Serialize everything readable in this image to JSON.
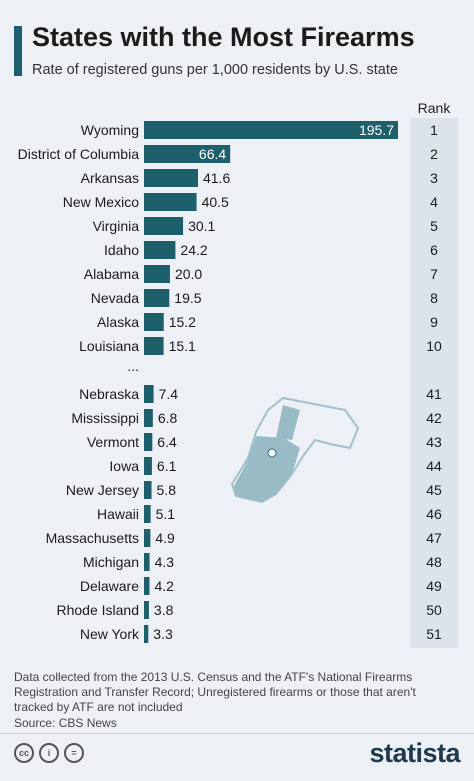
{
  "title": "States with the Most Firearms",
  "subtitle": "Rate of registered guns per 1,000 residents by U.S. state",
  "rank_header": "Rank",
  "ellipsis": "...",
  "footnote": "Data collected from the 2013 U.S. Census and the ATF's National Firearms Registration and Transfer Record; Unregistered firearms or those that aren't tracked by ATF are not included",
  "source": "Source: CBS News",
  "brand": "statista",
  "license_icons": [
    "creative-commons-icon",
    "attribution-icon",
    "no-derivatives-icon"
  ],
  "colors": {
    "bar": "#1d5f6a",
    "accent": "#1d5f6a",
    "background": "#edf0f4",
    "rank_column": "#dde3ea",
    "illustration": "#8fb6c0"
  },
  "chart_data": {
    "type": "bar",
    "orientation": "horizontal",
    "title": "States with the Most Firearms",
    "subtitle": "Rate of registered guns per 1,000 residents by U.S. state",
    "categories": [
      "Wyoming",
      "District of Columbia",
      "Arkansas",
      "New Mexico",
      "Virginia",
      "Idaho",
      "Alabama",
      "Nevada",
      "Alaska",
      "Louisiana",
      "Nebraska",
      "Mississippi",
      "Vermont",
      "Iowa",
      "New Jersey",
      "Hawaii",
      "Massachusetts",
      "Michigan",
      "Delaware",
      "Rhode Island",
      "New York"
    ],
    "values": [
      195.7,
      66.4,
      41.6,
      40.5,
      30.1,
      24.2,
      20.0,
      19.5,
      15.2,
      15.1,
      7.4,
      6.8,
      6.4,
      6.1,
      5.8,
      5.1,
      4.9,
      4.3,
      4.2,
      3.8,
      3.3
    ],
    "value_labels": [
      "195.7",
      "66.4",
      "41.6",
      "40.5",
      "30.1",
      "24.2",
      "20.0",
      "19.5",
      "15.2",
      "15.1",
      "7.4",
      "6.8",
      "6.4",
      "6.1",
      "5.8",
      "5.1",
      "4.9",
      "4.3",
      "4.2",
      "3.8",
      "3.3"
    ],
    "ranks": [
      "1",
      "2",
      "3",
      "4",
      "5",
      "6",
      "7",
      "8",
      "9",
      "10",
      "41",
      "42",
      "43",
      "44",
      "45",
      "46",
      "47",
      "48",
      "49",
      "50",
      "51"
    ],
    "gap_after_index": 9,
    "xlim": [
      0,
      195.7
    ],
    "grid": false,
    "legend": "none"
  }
}
